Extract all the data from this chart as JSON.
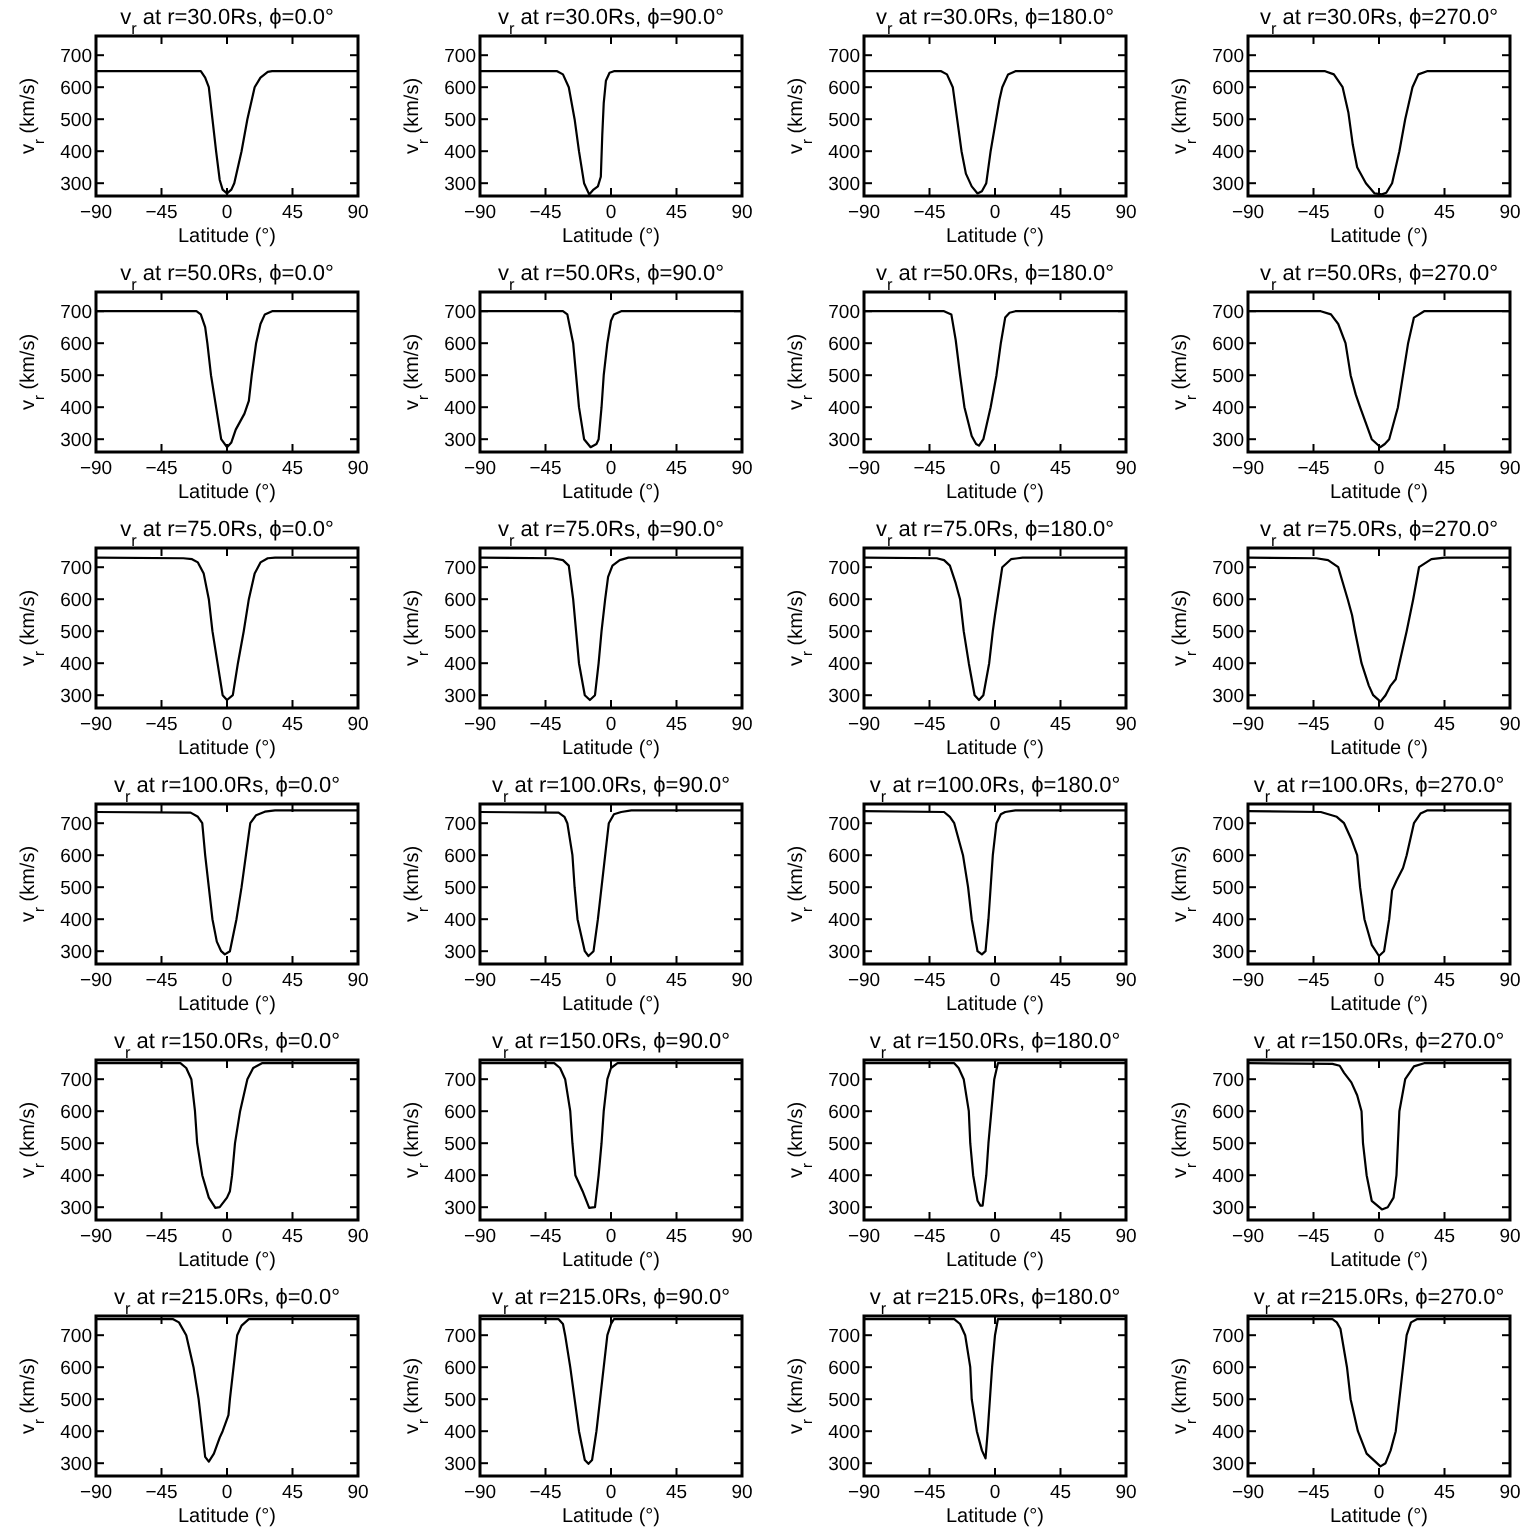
{
  "chart_data": [
    {
      "type": "line",
      "title": "v$_{r}$ at r=30.0Rs, ϕ=0.0°",
      "xlabel": "Latitude (°)",
      "ylabel": "v$_{r}$ (km/s)",
      "xlim": [
        -90,
        90
      ],
      "xticks": [
        -90,
        -45,
        0,
        45,
        90
      ],
      "ylim": [
        260,
        760
      ],
      "yticks": [
        300,
        400,
        500,
        600,
        700
      ],
      "color": "#000000",
      "x": [
        -90,
        -18,
        -15,
        -12.5,
        -10,
        -7.5,
        -5,
        -3,
        0,
        3,
        5,
        10,
        14,
        19,
        23,
        28,
        31,
        90
      ],
      "values": [
        650,
        650,
        630,
        600,
        500,
        400,
        310,
        280,
        268,
        280,
        300,
        400,
        500,
        600,
        630,
        648,
        650,
        650
      ]
    },
    {
      "type": "line",
      "title": "v$_{r}$ at r=30.0Rs, ϕ=90.0°",
      "xlabel": "Latitude (°)",
      "ylabel": "v$_{r}$ (km/s)",
      "xlim": [
        -90,
        90
      ],
      "xticks": [
        -90,
        -45,
        0,
        45,
        90
      ],
      "ylim": [
        260,
        760
      ],
      "yticks": [
        300,
        400,
        500,
        600,
        700
      ],
      "color": "#000000",
      "x": [
        -90,
        -37,
        -33,
        -29,
        -25,
        -22,
        -18.5,
        -15,
        -12,
        -9,
        -7,
        -6,
        -5,
        -3.5,
        -1,
        2,
        90
      ],
      "values": [
        650,
        650,
        640,
        600,
        500,
        400,
        300,
        265,
        280,
        290,
        320,
        450,
        550,
        620,
        645,
        650,
        650
      ]
    },
    {
      "type": "line",
      "title": "v$_{r}$ at r=30.0Rs, ϕ=180.0°",
      "xlabel": "Latitude (°)",
      "ylabel": "v$_{r}$ (km/s)",
      "xlim": [
        -90,
        90
      ],
      "xticks": [
        -90,
        -45,
        0,
        45,
        90
      ],
      "ylim": [
        260,
        760
      ],
      "yticks": [
        300,
        400,
        500,
        600,
        700
      ],
      "color": "#000000",
      "x": [
        -90,
        -37,
        -33,
        -29,
        -26,
        -23,
        -20,
        -16,
        -12,
        -9,
        -6,
        -3,
        0,
        3,
        5,
        9,
        14,
        90
      ],
      "values": [
        650,
        650,
        640,
        600,
        500,
        400,
        330,
        290,
        268,
        275,
        300,
        400,
        480,
        560,
        600,
        640,
        650,
        650
      ]
    },
    {
      "type": "line",
      "title": "v$_{r}$ at r=30.0Rs, ϕ=270.0°",
      "xlabel": "Latitude (°)",
      "ylabel": "v$_{r}$ (km/s)",
      "xlim": [
        -90,
        90
      ],
      "xticks": [
        -90,
        -45,
        0,
        45,
        90
      ],
      "ylim": [
        260,
        760
      ],
      "yticks": [
        300,
        400,
        500,
        600,
        700
      ],
      "color": "#000000",
      "x": [
        -90,
        -37,
        -31,
        -25,
        -21,
        -18,
        -15,
        -9,
        -3,
        2,
        5,
        9,
        14,
        18,
        23,
        27,
        33,
        90
      ],
      "values": [
        650,
        650,
        640,
        600,
        520,
        420,
        350,
        300,
        268,
        265,
        270,
        300,
        400,
        500,
        600,
        640,
        650,
        650
      ]
    },
    {
      "type": "line",
      "title": "v$_{r}$ at r=50.0Rs, ϕ=0.0°",
      "xlabel": "Latitude (°)",
      "ylabel": "v$_{r}$ (km/s)",
      "xlim": [
        -90,
        90
      ],
      "xticks": [
        -90,
        -45,
        0,
        45,
        90
      ],
      "ylim": [
        260,
        760
      ],
      "yticks": [
        300,
        400,
        500,
        600,
        700
      ],
      "color": "#000000",
      "x": [
        -90,
        -21,
        -18,
        -15,
        -13.5,
        -11,
        -7.5,
        -4,
        0,
        3,
        6,
        12,
        15,
        17,
        20,
        23,
        26,
        31,
        90
      ],
      "values": [
        700,
        700,
        690,
        650,
        600,
        500,
        400,
        300,
        275,
        290,
        330,
        380,
        420,
        500,
        600,
        660,
        690,
        700,
        700
      ]
    },
    {
      "type": "line",
      "title": "v$_{r}$ at r=50.0Rs, ϕ=90.0°",
      "xlabel": "Latitude (°)",
      "ylabel": "v$_{r}$ (km/s)",
      "xlim": [
        -90,
        90
      ],
      "xticks": [
        -90,
        -45,
        0,
        45,
        90
      ],
      "ylim": [
        260,
        760
      ],
      "yticks": [
        300,
        400,
        500,
        600,
        700
      ],
      "color": "#000000",
      "x": [
        -90,
        -33,
        -30,
        -26,
        -24,
        -22,
        -18.5,
        -14,
        -10,
        -8.5,
        -6.5,
        -5,
        -2.5,
        0,
        2,
        7,
        90
      ],
      "values": [
        700,
        700,
        690,
        600,
        500,
        400,
        300,
        275,
        285,
        300,
        400,
        500,
        600,
        670,
        690,
        700,
        700
      ]
    },
    {
      "type": "line",
      "title": "v$_{r}$ at r=50.0Rs, ϕ=180.0°",
      "xlabel": "Latitude (°)",
      "ylabel": "v$_{r}$ (km/s)",
      "xlim": [
        -90,
        90
      ],
      "xticks": [
        -90,
        -45,
        0,
        45,
        90
      ],
      "ylim": [
        260,
        760
      ],
      "yticks": [
        300,
        400,
        500,
        600,
        700
      ],
      "color": "#000000",
      "x": [
        -90,
        -35,
        -30,
        -27,
        -24,
        -21,
        -16,
        -13,
        -11,
        -8,
        -3,
        1,
        4,
        7,
        10,
        14,
        90
      ],
      "values": [
        700,
        700,
        690,
        610,
        500,
        400,
        310,
        285,
        280,
        300,
        400,
        500,
        600,
        680,
        695,
        700,
        700
      ]
    },
    {
      "type": "line",
      "title": "v$_{r}$ at r=50.0Rs, ϕ=270.0°",
      "xlabel": "Latitude (°)",
      "ylabel": "v$_{r}$ (km/s)",
      "xlim": [
        -90,
        90
      ],
      "xticks": [
        -90,
        -45,
        0,
        45,
        90
      ],
      "ylim": [
        260,
        760
      ],
      "yticks": [
        300,
        400,
        500,
        600,
        700
      ],
      "color": "#000000",
      "x": [
        -90,
        -40,
        -33,
        -28,
        -23,
        -19.5,
        -16,
        -13,
        -5,
        1,
        4,
        7,
        13,
        16.5,
        20,
        24,
        31,
        90
      ],
      "values": [
        700,
        700,
        690,
        660,
        600,
        500,
        440,
        400,
        300,
        275,
        285,
        300,
        400,
        500,
        600,
        680,
        700,
        700
      ]
    },
    {
      "type": "line",
      "title": "v$_{r}$ at r=75.0Rs, ϕ=0.0°",
      "xlabel": "Latitude (°)",
      "ylabel": "v$_{r}$ (km/s)",
      "xlim": [
        -90,
        90
      ],
      "xticks": [
        -90,
        -45,
        0,
        45,
        90
      ],
      "ylim": [
        260,
        760
      ],
      "yticks": [
        300,
        400,
        500,
        600,
        700
      ],
      "color": "#000000",
      "x": [
        -90,
        -30,
        -24,
        -20,
        -16,
        -12.5,
        -10,
        -6.5,
        -3,
        0,
        4,
        7.5,
        11.5,
        15,
        19,
        23,
        28,
        33,
        90
      ],
      "values": [
        730,
        728,
        725,
        715,
        680,
        600,
        500,
        400,
        300,
        285,
        300,
        400,
        500,
        600,
        680,
        715,
        728,
        730,
        730
      ]
    },
    {
      "type": "line",
      "title": "v$_{r}$ at r=75.0Rs, ϕ=90.0°",
      "xlabel": "Latitude (°)",
      "ylabel": "v$_{r}$ (km/s)",
      "xlim": [
        -90,
        90
      ],
      "xticks": [
        -90,
        -45,
        0,
        45,
        90
      ],
      "ylim": [
        260,
        760
      ],
      "yticks": [
        300,
        400,
        500,
        600,
        700
      ],
      "color": "#000000",
      "x": [
        -90,
        -40,
        -33,
        -29,
        -26,
        -24,
        -22,
        -18,
        -14.5,
        -11,
        -8.5,
        -6.5,
        -4,
        -2,
        1,
        6,
        12,
        90
      ],
      "values": [
        730,
        728,
        722,
        705,
        600,
        500,
        400,
        300,
        285,
        300,
        400,
        500,
        600,
        670,
        705,
        722,
        730,
        730
      ]
    },
    {
      "type": "line",
      "title": "v$_{r}$ at r=75.0Rs, ϕ=180.0°",
      "xlabel": "Latitude (°)",
      "ylabel": "v$_{r}$ (km/s)",
      "xlim": [
        -90,
        90
      ],
      "xticks": [
        -90,
        -45,
        0,
        45,
        90
      ],
      "ylim": [
        260,
        760
      ],
      "yticks": [
        300,
        400,
        500,
        600,
        700
      ],
      "color": "#000000",
      "x": [
        -90,
        -40,
        -35,
        -31,
        -27,
        -24,
        -21.5,
        -18,
        -14,
        -11,
        -8,
        -4,
        -1.5,
        0,
        2,
        5,
        11,
        19,
        90
      ],
      "values": [
        730,
        728,
        722,
        705,
        650,
        600,
        500,
        400,
        300,
        285,
        300,
        400,
        500,
        550,
        610,
        700,
        725,
        730,
        730
      ]
    },
    {
      "type": "line",
      "title": "v$_{r}$ at r=75.0Rs, ϕ=270.0°",
      "xlabel": "Latitude (°)",
      "ylabel": "v$_{r}$ (km/s)",
      "xlim": [
        -90,
        90
      ],
      "xticks": [
        -90,
        -45,
        0,
        45,
        90
      ],
      "ylim": [
        260,
        760
      ],
      "yticks": [
        300,
        400,
        500,
        600,
        700
      ],
      "color": "#000000",
      "x": [
        -90,
        -43,
        -35,
        -28,
        -21.5,
        -18.5,
        -16.5,
        -12,
        -7,
        -4,
        1,
        4.5,
        8,
        11.5,
        14,
        19,
        23.5,
        27.5,
        36,
        45,
        90
      ],
      "values": [
        730,
        728,
        722,
        700,
        600,
        550,
        500,
        400,
        330,
        300,
        280,
        300,
        330,
        350,
        400,
        500,
        600,
        700,
        725,
        730,
        730
      ]
    },
    {
      "type": "line",
      "title": "v$_{r}$ at r=100.0Rs, ϕ=0.0°",
      "xlabel": "Latitude (°)",
      "ylabel": "v$_{r}$ (km/s)",
      "xlim": [
        -90,
        90
      ],
      "xticks": [
        -90,
        -45,
        0,
        45,
        90
      ],
      "ylim": [
        260,
        760
      ],
      "yticks": [
        300,
        400,
        500,
        600,
        700
      ],
      "color": "#000000",
      "x": [
        -90,
        -25,
        -20,
        -17,
        -15,
        -12.5,
        -10,
        -7,
        -4,
        -1.5,
        2,
        6.5,
        10,
        13,
        16,
        20,
        26,
        33,
        90
      ],
      "values": [
        735,
        733,
        720,
        700,
        600,
        500,
        400,
        330,
        300,
        290,
        300,
        400,
        500,
        600,
        700,
        725,
        736,
        740,
        740
      ]
    },
    {
      "type": "line",
      "title": "v$_{r}$ at r=100.0Rs, ϕ=90.0°",
      "xlabel": "Latitude (°)",
      "ylabel": "v$_{r}$ (km/s)",
      "xlim": [
        -90,
        90
      ],
      "xticks": [
        -90,
        -45,
        0,
        45,
        90
      ],
      "ylim": [
        260,
        760
      ],
      "yticks": [
        300,
        400,
        500,
        600,
        700
      ],
      "color": "#000000",
      "x": [
        -90,
        -36,
        -32,
        -30,
        -26.5,
        -25,
        -23,
        -18,
        -15.5,
        -12,
        -9,
        -6.5,
        -4,
        -1.5,
        2,
        7,
        14,
        90
      ],
      "values": [
        735,
        733,
        720,
        700,
        600,
        500,
        400,
        300,
        285,
        300,
        400,
        500,
        600,
        700,
        728,
        735,
        740,
        740
      ]
    },
    {
      "type": "line",
      "title": "v$_{r}$ at r=100.0Rs, ϕ=180.0°",
      "xlabel": "Latitude (°)",
      "ylabel": "v$_{r}$ (km/s)",
      "xlim": [
        -90,
        90
      ],
      "xticks": [
        -90,
        -45,
        0,
        45,
        90
      ],
      "ylim": [
        260,
        760
      ],
      "yticks": [
        300,
        400,
        500,
        600,
        700
      ],
      "color": "#000000",
      "x": [
        -90,
        -35,
        -31,
        -28,
        -22,
        -18.5,
        -16,
        -12,
        -9,
        -6.5,
        -4.5,
        -3,
        -1.5,
        1,
        4,
        7,
        14,
        90
      ],
      "values": [
        738,
        735,
        720,
        700,
        600,
        500,
        400,
        300,
        290,
        300,
        400,
        500,
        600,
        700,
        728,
        735,
        740,
        740
      ]
    },
    {
      "type": "line",
      "title": "v$_{r}$ at r=100.0Rs, ϕ=270.0°",
      "xlabel": "Latitude (°)",
      "ylabel": "v$_{r}$ (km/s)",
      "xlim": [
        -90,
        90
      ],
      "xticks": [
        -90,
        -45,
        0,
        45,
        90
      ],
      "ylim": [
        260,
        760
      ],
      "yticks": [
        300,
        400,
        500,
        600,
        700
      ],
      "color": "#000000",
      "x": [
        -90,
        -40,
        -29,
        -24,
        -19,
        -15,
        -13,
        -10,
        -5,
        0,
        3.5,
        7,
        9,
        12,
        16.5,
        19,
        24,
        28.5,
        33,
        90
      ],
      "values": [
        738,
        735,
        720,
        700,
        650,
        600,
        500,
        400,
        320,
        285,
        300,
        400,
        490,
        520,
        560,
        600,
        700,
        730,
        740,
        740
      ]
    },
    {
      "type": "line",
      "title": "v$_{r}$ at r=150.0Rs, ϕ=0.0°",
      "xlabel": "Latitude (°)",
      "ylabel": "v$_{r}$ (km/s)",
      "xlim": [
        -90,
        90
      ],
      "xticks": [
        -90,
        -45,
        0,
        45,
        90
      ],
      "ylim": [
        260,
        760
      ],
      "yticks": [
        300,
        400,
        500,
        600,
        700
      ],
      "color": "#000000",
      "x": [
        -90,
        -32,
        -28,
        -24.5,
        -22,
        -20.5,
        -17,
        -12.5,
        -8,
        -5,
        0,
        2,
        3.5,
        5.5,
        9,
        14,
        18,
        24,
        90
      ],
      "values": [
        750,
        750,
        735,
        700,
        600,
        500,
        400,
        330,
        298,
        300,
        330,
        350,
        400,
        500,
        600,
        700,
        735,
        750,
        750
      ]
    },
    {
      "type": "line",
      "title": "v$_{r}$ at r=150.0Rs, ϕ=90.0°",
      "xlabel": "Latitude (°)",
      "ylabel": "v$_{r}$ (km/s)",
      "xlim": [
        -90,
        90
      ],
      "xticks": [
        -90,
        -45,
        0,
        45,
        90
      ],
      "ylim": [
        260,
        760
      ],
      "yticks": [
        300,
        400,
        500,
        600,
        700
      ],
      "color": "#000000",
      "x": [
        -90,
        -39,
        -35,
        -31.5,
        -28,
        -26.5,
        -24.5,
        -19.5,
        -15,
        -11,
        -8.5,
        -6.5,
        -5,
        -2.5,
        0,
        4.5,
        90
      ],
      "values": [
        750,
        750,
        735,
        700,
        600,
        500,
        400,
        350,
        298,
        300,
        400,
        500,
        600,
        700,
        735,
        750,
        750
      ]
    },
    {
      "type": "line",
      "title": "v$_{r}$ at r=150.0Rs, ϕ=180.0°",
      "xlabel": "Latitude (°)",
      "ylabel": "v$_{r}$ (km/s)",
      "xlim": [
        -90,
        90
      ],
      "xticks": [
        -90,
        -45,
        0,
        45,
        90
      ],
      "ylim": [
        260,
        760
      ],
      "yticks": [
        300,
        400,
        500,
        600,
        700
      ],
      "color": "#000000",
      "x": [
        -90,
        -28,
        -25,
        -21.5,
        -18,
        -17,
        -15,
        -12,
        -10,
        -8.5,
        -6,
        -4.5,
        -2.5,
        -0.5,
        2,
        90
      ],
      "values": [
        750,
        750,
        735,
        700,
        600,
        500,
        400,
        320,
        305,
        305,
        400,
        500,
        600,
        700,
        750,
        750
      ]
    },
    {
      "type": "line",
      "title": "v$_{r}$ at r=150.0Rs, ϕ=270.0°",
      "xlabel": "Latitude (°)",
      "ylabel": "v$_{r}$ (km/s)",
      "xlim": [
        -90,
        90
      ],
      "xticks": [
        -90,
        -45,
        0,
        45,
        90
      ],
      "ylim": [
        260,
        760
      ],
      "yticks": [
        300,
        400,
        500,
        600,
        700
      ],
      "color": "#000000",
      "x": [
        -90,
        -32,
        -27,
        -24,
        -19,
        -15,
        -12,
        -11,
        -8.5,
        -5,
        2,
        6,
        10,
        12,
        13,
        14,
        18,
        24,
        31,
        90
      ],
      "values": [
        750,
        748,
        742,
        720,
        690,
        650,
        600,
        500,
        400,
        320,
        293,
        300,
        330,
        400,
        500,
        600,
        700,
        740,
        750,
        750
      ]
    },
    {
      "type": "line",
      "title": "v$_{r}$ at r=215.0Rs, ϕ=0.0°",
      "xlabel": "Latitude (°)",
      "ylabel": "v$_{r}$ (km/s)",
      "xlim": [
        -90,
        90
      ],
      "xticks": [
        -90,
        -45,
        0,
        45,
        90
      ],
      "ylim": [
        260,
        760
      ],
      "yticks": [
        300,
        400,
        500,
        600,
        700
      ],
      "color": "#000000",
      "x": [
        -90,
        -37,
        -33,
        -28,
        -23,
        -19.5,
        -17,
        -15,
        -12.5,
        -9,
        -5,
        -3,
        1,
        2,
        4.5,
        7,
        10,
        15,
        90
      ],
      "values": [
        750,
        750,
        740,
        700,
        600,
        500,
        400,
        320,
        305,
        330,
        380,
        400,
        450,
        500,
        600,
        700,
        730,
        750,
        750
      ]
    },
    {
      "type": "line",
      "title": "v$_{r}$ at r=215.0Rs, ϕ=90.0°",
      "xlabel": "Latitude (°)",
      "ylabel": "v$_{r}$ (km/s)",
      "xlim": [
        -90,
        90
      ],
      "xticks": [
        -90,
        -45,
        0,
        45,
        90
      ],
      "ylim": [
        260,
        760
      ],
      "yticks": [
        300,
        400,
        500,
        600,
        700
      ],
      "color": "#000000",
      "x": [
        -90,
        -36,
        -33,
        -31.5,
        -28,
        -25,
        -22,
        -18,
        -15.5,
        -13,
        -10,
        -7.5,
        -5,
        -2.5,
        0,
        2,
        90
      ],
      "values": [
        750,
        750,
        735,
        700,
        600,
        500,
        400,
        310,
        298,
        310,
        400,
        500,
        600,
        700,
        735,
        750,
        750
      ]
    },
    {
      "type": "line",
      "title": "v$_{r}$ at r=215.0Rs, ϕ=180.0°",
      "xlabel": "Latitude (°)",
      "ylabel": "v$_{r}$ (km/s)",
      "xlim": [
        -90,
        90
      ],
      "xticks": [
        -90,
        -45,
        0,
        45,
        90
      ],
      "ylim": [
        260,
        760
      ],
      "yticks": [
        300,
        400,
        500,
        600,
        700
      ],
      "color": "#000000",
      "x": [
        -90,
        -28,
        -24,
        -20.5,
        -17,
        -16,
        -12.5,
        -9,
        -6.5,
        -5,
        -3.5,
        -2,
        0,
        2,
        90
      ],
      "values": [
        750,
        750,
        735,
        700,
        600,
        500,
        400,
        340,
        315,
        400,
        500,
        600,
        700,
        750,
        750
      ]
    },
    {
      "type": "line",
      "title": "v$_{r}$ at r=215.0Rs, ϕ=270.0°",
      "xlabel": "Latitude (°)",
      "ylabel": "v$_{r}$ (km/s)",
      "xlim": [
        -90,
        90
      ],
      "xticks": [
        -90,
        -45,
        0,
        45,
        90
      ],
      "ylim": [
        260,
        760
      ],
      "yticks": [
        300,
        400,
        500,
        600,
        700
      ],
      "color": "#000000",
      "x": [
        -90,
        -32,
        -29,
        -26.5,
        -22,
        -19.5,
        -14.5,
        -8.5,
        1,
        4.5,
        8,
        11.5,
        14,
        16.5,
        19,
        22,
        26,
        90
      ],
      "values": [
        750,
        750,
        740,
        720,
        600,
        500,
        400,
        330,
        290,
        300,
        340,
        400,
        500,
        600,
        700,
        740,
        750,
        750
      ]
    }
  ]
}
